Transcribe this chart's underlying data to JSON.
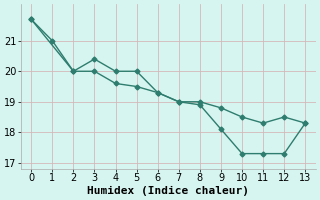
{
  "line1_x": [
    0,
    1,
    2,
    3,
    4,
    5,
    6,
    7,
    8,
    9,
    10,
    11,
    12,
    13
  ],
  "line1_y": [
    21.7,
    21.0,
    20.0,
    20.4,
    20.0,
    20.0,
    19.3,
    19.0,
    18.9,
    18.1,
    17.3,
    17.3,
    17.3,
    18.3
  ],
  "line2_x": [
    0,
    2,
    3,
    4,
    5,
    6,
    7,
    8,
    9,
    10,
    11,
    12,
    13
  ],
  "line2_y": [
    21.7,
    20.0,
    20.0,
    19.6,
    19.5,
    19.3,
    19.0,
    19.0,
    18.8,
    18.5,
    18.3,
    18.5,
    18.3
  ],
  "color": "#2e7d6e",
  "bg_color": "#d6f5f0",
  "grid_color_major": "#d4b8b8",
  "grid_color_minor": "#d4b8b8",
  "xlabel": "Humidex (Indice chaleur)",
  "xlim": [
    -0.5,
    13.5
  ],
  "ylim": [
    16.8,
    22.2
  ],
  "yticks": [
    17,
    18,
    19,
    20,
    21
  ],
  "xticks": [
    0,
    1,
    2,
    3,
    4,
    5,
    6,
    7,
    8,
    9,
    10,
    11,
    12,
    13
  ],
  "marker": "D",
  "markersize": 2.5,
  "linewidth": 1.0,
  "xlabel_fontsize": 8,
  "tick_fontsize": 7
}
